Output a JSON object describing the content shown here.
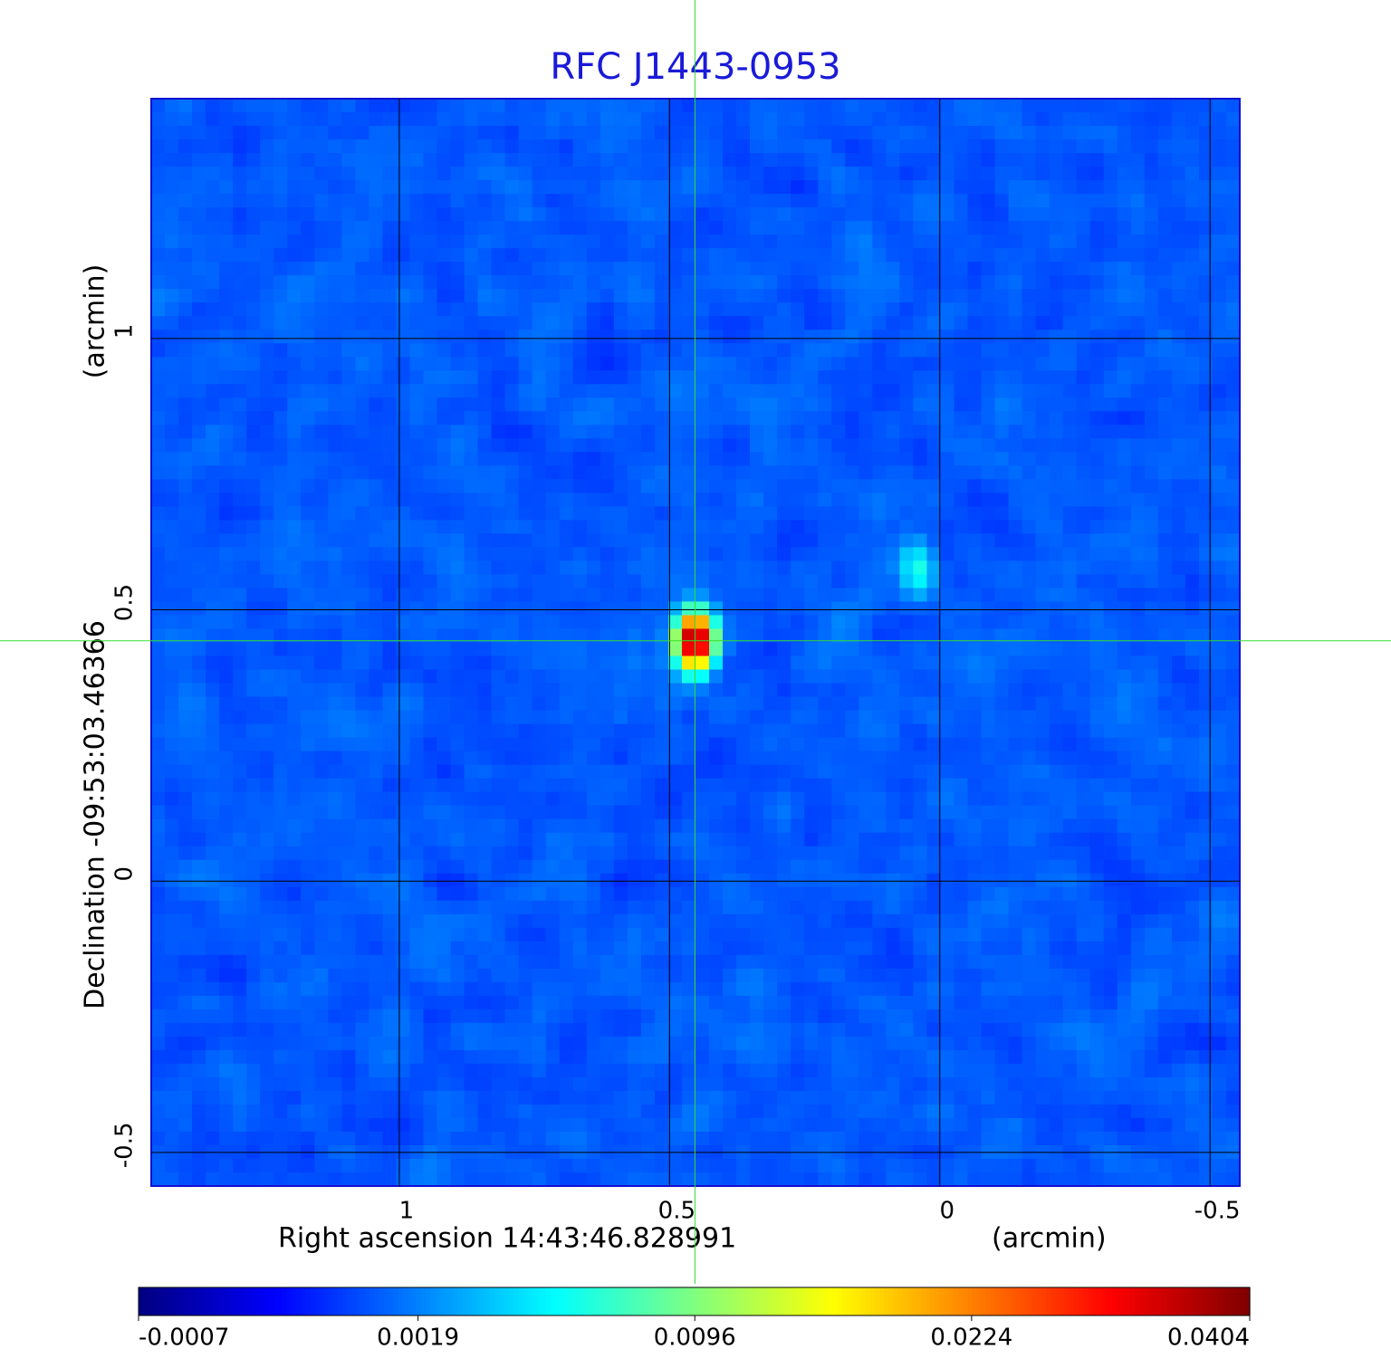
{
  "chart_data": {
    "type": "image",
    "title": "RFC J1443-0953",
    "x_label": "Right ascension  14:43:46.828991",
    "x_unit": "(arcmin)",
    "y_label": "Declination  -09:53:03.46366",
    "y_unit": "(arcmin)",
    "xlim": [
      1.459,
      -0.555
    ],
    "ylim": [
      -0.562,
      1.442
    ],
    "xticks": [
      1.0,
      0.5,
      0.0,
      -0.5
    ],
    "yticks": [
      -0.5,
      0.0,
      0.5,
      1.0
    ],
    "grid": true,
    "colormap": "jet",
    "color_scale": "sqrt",
    "clim": [
      -0.0007,
      0.0404
    ],
    "cticks": [
      -0.0007,
      0.0019,
      0.0096,
      0.0224,
      0.0404
    ],
    "sources": [
      {
        "x": 0.453,
        "y": 0.443,
        "value": 0.0404
      },
      {
        "x": 0.04,
        "y": 0.575,
        "value": 0.006
      }
    ]
  }
}
